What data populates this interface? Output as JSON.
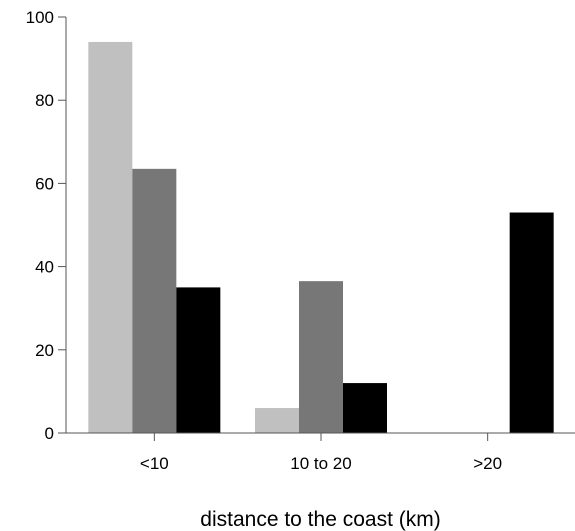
{
  "chart_data": {
    "type": "bar",
    "title": "",
    "xlabel": "distance to the coast (km)",
    "ylabel": "",
    "categories": [
      "<10",
      "10 to 20",
      ">20"
    ],
    "ylim": [
      0,
      100
    ],
    "yticks": [
      0,
      20,
      40,
      60,
      80,
      100
    ],
    "grid": false,
    "legend": "none",
    "series": [
      {
        "color": "#c0c0c0",
        "values": [
          94,
          6,
          0
        ]
      },
      {
        "color": "#777777",
        "values": [
          63.5,
          36.5,
          0
        ]
      },
      {
        "color": "#000000",
        "values": [
          35,
          12,
          53
        ]
      }
    ]
  }
}
